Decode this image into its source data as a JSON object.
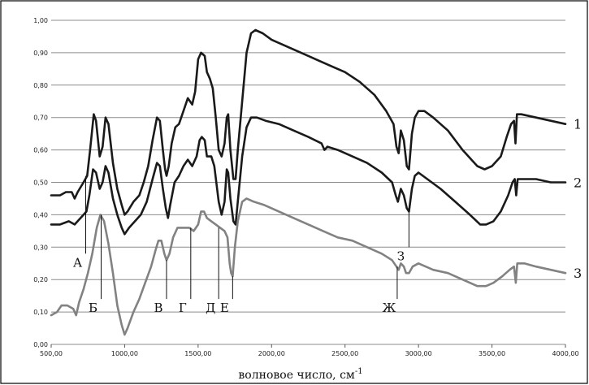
{
  "chart_data": {
    "type": "line",
    "title": "",
    "xlabel": "волновое число, см",
    "xlabel_sup": "-1",
    "ylabel": "",
    "xlim": [
      500,
      4000
    ],
    "ylim": [
      0,
      1
    ],
    "grid": true,
    "x_ticks": [
      {
        "value": 500,
        "label": "500,00"
      },
      {
        "value": 1000,
        "label": "1000,00"
      },
      {
        "value": 1500,
        "label": "1500,00"
      },
      {
        "value": 2000,
        "label": "2000,00"
      },
      {
        "value": 2500,
        "label": "2500,00"
      },
      {
        "value": 3000,
        "label": "3000,00"
      },
      {
        "value": 3500,
        "label": "3500,00"
      },
      {
        "value": 4000,
        "label": "4000,00"
      }
    ],
    "y_ticks": [
      {
        "value": 0.0,
        "label": "0,00"
      },
      {
        "value": 0.1,
        "label": "0,10"
      },
      {
        "value": 0.2,
        "label": "0,20"
      },
      {
        "value": 0.3,
        "label": "0,30"
      },
      {
        "value": 0.4,
        "label": "0,40"
      },
      {
        "value": 0.5,
        "label": "0,50"
      },
      {
        "value": 0.6,
        "label": "0,60"
      },
      {
        "value": 0.7,
        "label": "0,70"
      },
      {
        "value": 0.8,
        "label": "0,80"
      },
      {
        "value": 0.9,
        "label": "0,90"
      },
      {
        "value": 1.0,
        "label": "1,00"
      }
    ],
    "series": [
      {
        "label": "1",
        "label_at": [
          4000,
          0.68
        ],
        "color": "#1a1a1a",
        "points": [
          [
            500,
            0.46
          ],
          [
            560,
            0.46
          ],
          [
            600,
            0.47
          ],
          [
            640,
            0.47
          ],
          [
            660,
            0.45
          ],
          [
            680,
            0.47
          ],
          [
            720,
            0.5
          ],
          [
            745,
            0.52
          ],
          [
            765,
            0.6
          ],
          [
            790,
            0.71
          ],
          [
            805,
            0.69
          ],
          [
            830,
            0.58
          ],
          [
            850,
            0.61
          ],
          [
            870,
            0.7
          ],
          [
            890,
            0.68
          ],
          [
            920,
            0.56
          ],
          [
            950,
            0.48
          ],
          [
            980,
            0.43
          ],
          [
            1000,
            0.4
          ],
          [
            1020,
            0.41
          ],
          [
            1060,
            0.44
          ],
          [
            1100,
            0.46
          ],
          [
            1130,
            0.5
          ],
          [
            1160,
            0.55
          ],
          [
            1190,
            0.63
          ],
          [
            1220,
            0.7
          ],
          [
            1240,
            0.69
          ],
          [
            1260,
            0.6
          ],
          [
            1275,
            0.54
          ],
          [
            1285,
            0.52
          ],
          [
            1300,
            0.55
          ],
          [
            1320,
            0.62
          ],
          [
            1345,
            0.67
          ],
          [
            1370,
            0.68
          ],
          [
            1400,
            0.72
          ],
          [
            1430,
            0.76
          ],
          [
            1460,
            0.74
          ],
          [
            1480,
            0.78
          ],
          [
            1500,
            0.88
          ],
          [
            1520,
            0.9
          ],
          [
            1545,
            0.89
          ],
          [
            1560,
            0.84
          ],
          [
            1580,
            0.82
          ],
          [
            1600,
            0.79
          ],
          [
            1620,
            0.7
          ],
          [
            1640,
            0.6
          ],
          [
            1660,
            0.58
          ],
          [
            1680,
            0.62
          ],
          [
            1695,
            0.7
          ],
          [
            1705,
            0.71
          ],
          [
            1720,
            0.6
          ],
          [
            1740,
            0.51
          ],
          [
            1755,
            0.51
          ],
          [
            1770,
            0.6
          ],
          [
            1800,
            0.75
          ],
          [
            1830,
            0.9
          ],
          [
            1860,
            0.96
          ],
          [
            1890,
            0.97
          ],
          [
            1940,
            0.96
          ],
          [
            2000,
            0.94
          ],
          [
            2100,
            0.92
          ],
          [
            2200,
            0.9
          ],
          [
            2300,
            0.88
          ],
          [
            2400,
            0.86
          ],
          [
            2500,
            0.84
          ],
          [
            2600,
            0.81
          ],
          [
            2700,
            0.77
          ],
          [
            2780,
            0.72
          ],
          [
            2830,
            0.68
          ],
          [
            2850,
            0.61
          ],
          [
            2865,
            0.59
          ],
          [
            2880,
            0.66
          ],
          [
            2900,
            0.63
          ],
          [
            2920,
            0.55
          ],
          [
            2935,
            0.54
          ],
          [
            2955,
            0.65
          ],
          [
            2975,
            0.7
          ],
          [
            3000,
            0.72
          ],
          [
            3040,
            0.72
          ],
          [
            3100,
            0.7
          ],
          [
            3200,
            0.66
          ],
          [
            3300,
            0.6
          ],
          [
            3400,
            0.55
          ],
          [
            3450,
            0.54
          ],
          [
            3500,
            0.55
          ],
          [
            3560,
            0.58
          ],
          [
            3600,
            0.64
          ],
          [
            3630,
            0.68
          ],
          [
            3650,
            0.69
          ],
          [
            3660,
            0.62
          ],
          [
            3670,
            0.71
          ],
          [
            3700,
            0.71
          ],
          [
            3800,
            0.7
          ],
          [
            3900,
            0.69
          ],
          [
            4000,
            0.68
          ]
        ]
      },
      {
        "label": "2",
        "label_at": [
          4000,
          0.5
        ],
        "color": "#1a1a1a",
        "points": [
          [
            500,
            0.37
          ],
          [
            560,
            0.37
          ],
          [
            620,
            0.38
          ],
          [
            660,
            0.37
          ],
          [
            700,
            0.39
          ],
          [
            740,
            0.41
          ],
          [
            760,
            0.46
          ],
          [
            785,
            0.54
          ],
          [
            805,
            0.53
          ],
          [
            830,
            0.48
          ],
          [
            850,
            0.5
          ],
          [
            870,
            0.55
          ],
          [
            890,
            0.53
          ],
          [
            920,
            0.45
          ],
          [
            950,
            0.4
          ],
          [
            980,
            0.36
          ],
          [
            1000,
            0.34
          ],
          [
            1030,
            0.36
          ],
          [
            1070,
            0.38
          ],
          [
            1110,
            0.4
          ],
          [
            1150,
            0.44
          ],
          [
            1190,
            0.51
          ],
          [
            1220,
            0.56
          ],
          [
            1240,
            0.55
          ],
          [
            1260,
            0.48
          ],
          [
            1280,
            0.42
          ],
          [
            1295,
            0.39
          ],
          [
            1310,
            0.43
          ],
          [
            1340,
            0.5
          ],
          [
            1370,
            0.52
          ],
          [
            1400,
            0.55
          ],
          [
            1430,
            0.57
          ],
          [
            1460,
            0.55
          ],
          [
            1490,
            0.58
          ],
          [
            1510,
            0.63
          ],
          [
            1525,
            0.64
          ],
          [
            1545,
            0.63
          ],
          [
            1560,
            0.58
          ],
          [
            1590,
            0.58
          ],
          [
            1610,
            0.55
          ],
          [
            1640,
            0.44
          ],
          [
            1660,
            0.4
          ],
          [
            1680,
            0.44
          ],
          [
            1695,
            0.54
          ],
          [
            1705,
            0.53
          ],
          [
            1720,
            0.45
          ],
          [
            1740,
            0.38
          ],
          [
            1755,
            0.37
          ],
          [
            1770,
            0.44
          ],
          [
            1800,
            0.58
          ],
          [
            1830,
            0.67
          ],
          [
            1860,
            0.7
          ],
          [
            1900,
            0.7
          ],
          [
            1960,
            0.69
          ],
          [
            2050,
            0.68
          ],
          [
            2150,
            0.66
          ],
          [
            2250,
            0.64
          ],
          [
            2340,
            0.62
          ],
          [
            2360,
            0.6
          ],
          [
            2380,
            0.61
          ],
          [
            2450,
            0.6
          ],
          [
            2550,
            0.58
          ],
          [
            2650,
            0.56
          ],
          [
            2750,
            0.53
          ],
          [
            2820,
            0.5
          ],
          [
            2845,
            0.46
          ],
          [
            2860,
            0.44
          ],
          [
            2880,
            0.48
          ],
          [
            2900,
            0.46
          ],
          [
            2920,
            0.42
          ],
          [
            2935,
            0.41
          ],
          [
            2955,
            0.48
          ],
          [
            2975,
            0.52
          ],
          [
            3000,
            0.53
          ],
          [
            3060,
            0.51
          ],
          [
            3150,
            0.48
          ],
          [
            3250,
            0.44
          ],
          [
            3350,
            0.4
          ],
          [
            3420,
            0.37
          ],
          [
            3460,
            0.37
          ],
          [
            3510,
            0.38
          ],
          [
            3560,
            0.41
          ],
          [
            3610,
            0.46
          ],
          [
            3640,
            0.5
          ],
          [
            3655,
            0.51
          ],
          [
            3665,
            0.46
          ],
          [
            3675,
            0.51
          ],
          [
            3720,
            0.51
          ],
          [
            3800,
            0.51
          ],
          [
            3900,
            0.5
          ],
          [
            4000,
            0.5
          ]
        ]
      },
      {
        "label": "3",
        "label_at": [
          4000,
          0.22
        ],
        "color": "#828282",
        "points": [
          [
            500,
            0.09
          ],
          [
            540,
            0.1
          ],
          [
            570,
            0.12
          ],
          [
            610,
            0.12
          ],
          [
            650,
            0.11
          ],
          [
            670,
            0.09
          ],
          [
            690,
            0.13
          ],
          [
            720,
            0.17
          ],
          [
            750,
            0.22
          ],
          [
            780,
            0.28
          ],
          [
            810,
            0.36
          ],
          [
            835,
            0.4
          ],
          [
            860,
            0.38
          ],
          [
            890,
            0.31
          ],
          [
            920,
            0.22
          ],
          [
            950,
            0.12
          ],
          [
            980,
            0.06
          ],
          [
            1000,
            0.03
          ],
          [
            1020,
            0.05
          ],
          [
            1060,
            0.1
          ],
          [
            1100,
            0.14
          ],
          [
            1140,
            0.19
          ],
          [
            1180,
            0.24
          ],
          [
            1210,
            0.29
          ],
          [
            1230,
            0.32
          ],
          [
            1250,
            0.32
          ],
          [
            1270,
            0.28
          ],
          [
            1285,
            0.26
          ],
          [
            1305,
            0.28
          ],
          [
            1330,
            0.33
          ],
          [
            1360,
            0.36
          ],
          [
            1400,
            0.36
          ],
          [
            1440,
            0.36
          ],
          [
            1470,
            0.35
          ],
          [
            1500,
            0.37
          ],
          [
            1520,
            0.41
          ],
          [
            1540,
            0.41
          ],
          [
            1560,
            0.39
          ],
          [
            1590,
            0.38
          ],
          [
            1620,
            0.37
          ],
          [
            1650,
            0.36
          ],
          [
            1680,
            0.35
          ],
          [
            1700,
            0.33
          ],
          [
            1715,
            0.25
          ],
          [
            1725,
            0.22
          ],
          [
            1735,
            0.21
          ],
          [
            1750,
            0.3
          ],
          [
            1770,
            0.38
          ],
          [
            1800,
            0.44
          ],
          [
            1830,
            0.45
          ],
          [
            1880,
            0.44
          ],
          [
            1950,
            0.43
          ],
          [
            2050,
            0.41
          ],
          [
            2150,
            0.39
          ],
          [
            2250,
            0.37
          ],
          [
            2350,
            0.35
          ],
          [
            2450,
            0.33
          ],
          [
            2550,
            0.32
          ],
          [
            2650,
            0.3
          ],
          [
            2750,
            0.28
          ],
          [
            2820,
            0.26
          ],
          [
            2850,
            0.24
          ],
          [
            2865,
            0.23
          ],
          [
            2880,
            0.25
          ],
          [
            2900,
            0.24
          ],
          [
            2915,
            0.22
          ],
          [
            2935,
            0.22
          ],
          [
            2960,
            0.24
          ],
          [
            3000,
            0.25
          ],
          [
            3100,
            0.23
          ],
          [
            3200,
            0.22
          ],
          [
            3300,
            0.2
          ],
          [
            3400,
            0.18
          ],
          [
            3460,
            0.18
          ],
          [
            3510,
            0.19
          ],
          [
            3570,
            0.21
          ],
          [
            3620,
            0.23
          ],
          [
            3650,
            0.24
          ],
          [
            3662,
            0.19
          ],
          [
            3672,
            0.25
          ],
          [
            3720,
            0.25
          ],
          [
            3800,
            0.24
          ],
          [
            3900,
            0.23
          ],
          [
            4000,
            0.22
          ]
        ]
      }
    ],
    "annotations": [
      {
        "text": "А",
        "x": 735,
        "y_top": 0.52,
        "y_bottom": 0.28
      },
      {
        "text": "Б",
        "x": 840,
        "y_top": 0.4,
        "y_bottom": 0.14
      },
      {
        "text": "В",
        "x": 1285,
        "y_top": 0.26,
        "y_bottom": 0.14
      },
      {
        "text": "Г",
        "x": 1450,
        "y_top": 0.36,
        "y_bottom": 0.14
      },
      {
        "text": "Д",
        "x": 1640,
        "y_top": 0.36,
        "y_bottom": 0.14
      },
      {
        "text": "Е",
        "x": 1735,
        "y_top": 0.21,
        "y_bottom": 0.14
      },
      {
        "text": "Ж",
        "x": 2855,
        "y_top": 0.24,
        "y_bottom": 0.14
      },
      {
        "text": "З",
        "x": 2935,
        "y_top": 0.41,
        "y_bottom": 0.3
      }
    ]
  }
}
